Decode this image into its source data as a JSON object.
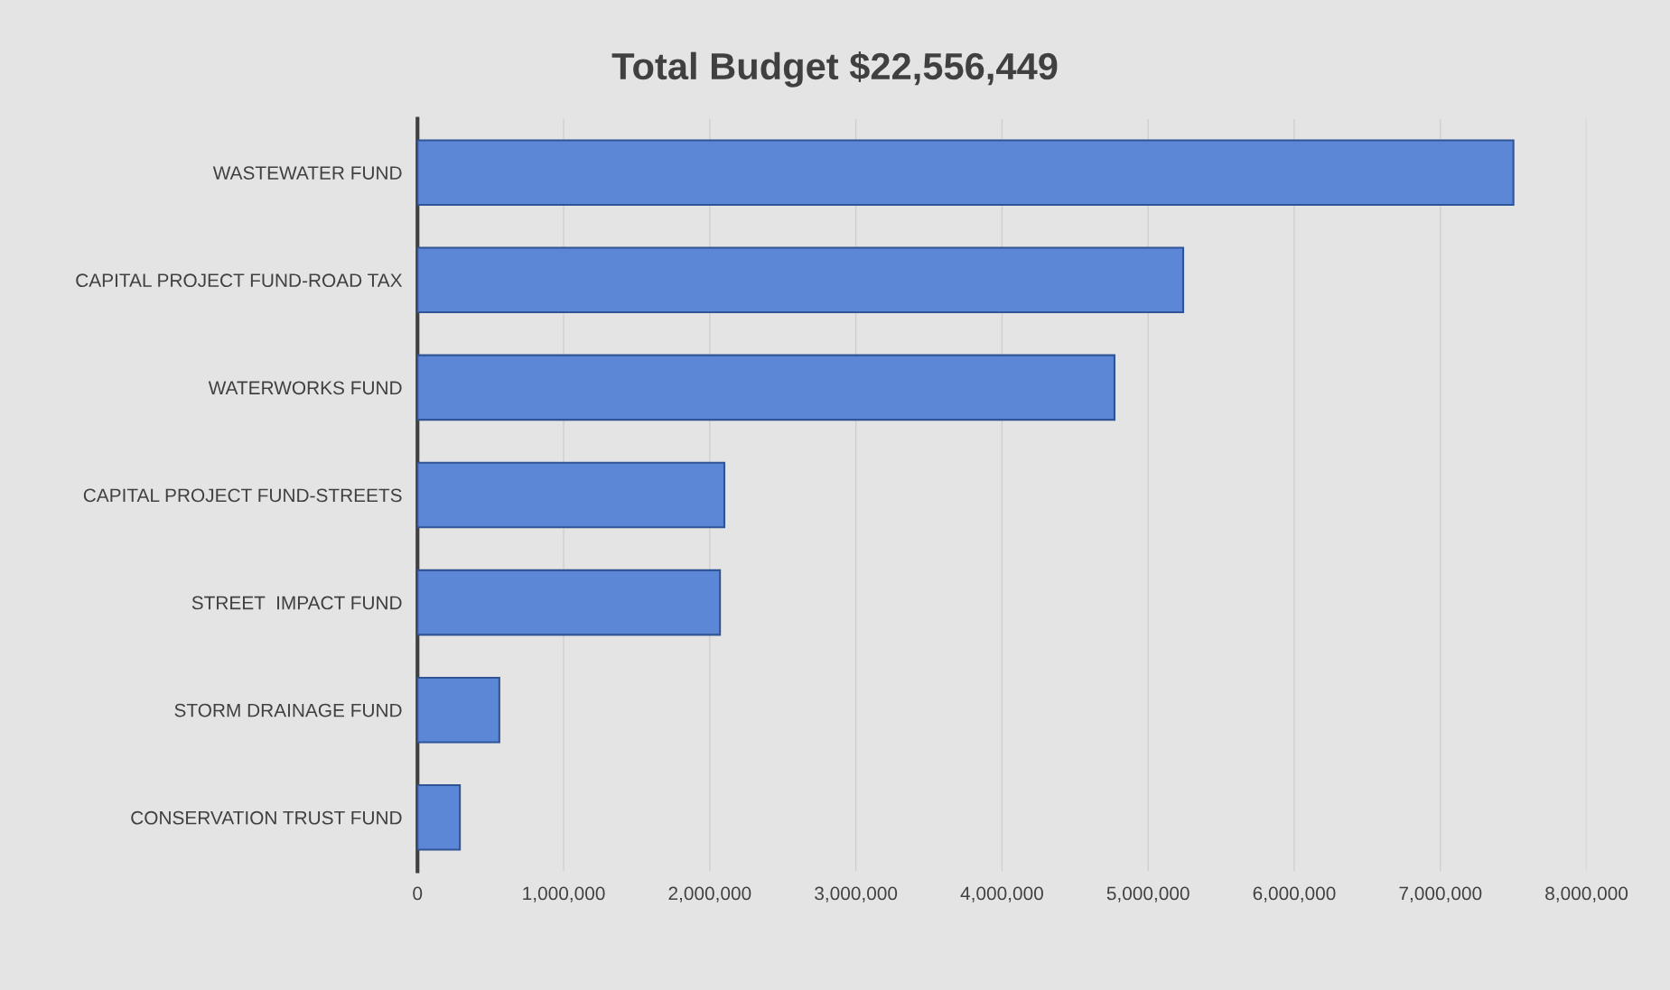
{
  "chart_data": {
    "type": "bar",
    "orientation": "horizontal",
    "title": "Total Budget $22,556,449",
    "categories": [
      "WASTEWATER FUND",
      "CAPITAL PROJECT FUND-ROAD TAX",
      "WATERWORKS FUND",
      "CAPITAL PROJECT FUND-STREETS",
      "STREET  IMPACT FUND",
      "STORM DRAINAGE FUND",
      "CONSERVATION TRUST FUND"
    ],
    "values": [
      7500000,
      5240000,
      4770000,
      2100000,
      2070000,
      560000,
      290000
    ],
    "color": "#5b87d6",
    "xlim": [
      0,
      8000000
    ],
    "xticks": [
      0,
      {
        "value": 1000000,
        "label": "1,000,000"
      },
      {
        "value": 2000000,
        "label": "2,000,000"
      },
      {
        "value": 3000000,
        "label": "3,000,000"
      },
      {
        "value": 4000000,
        "label": "4,000,000"
      },
      {
        "value": 5000000,
        "label": "5,000,000"
      },
      {
        "value": 6000000,
        "label": "6,000,000"
      },
      {
        "value": 7000000,
        "label": "7,000,000"
      },
      {
        "value": 8000000,
        "label": "8,000,000"
      }
    ],
    "grid": "x",
    "legend": false
  }
}
